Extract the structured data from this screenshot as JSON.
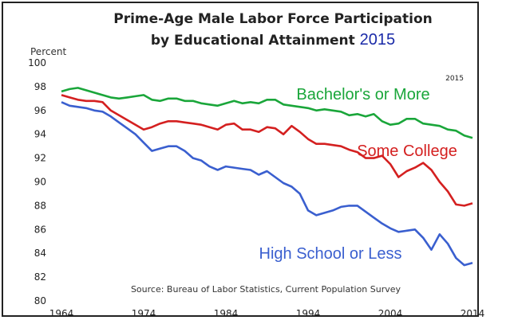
{
  "chart_data": {
    "type": "line",
    "title": "Prime-Age Male Labor Force Participation",
    "subtitle": "by Educational Attainment",
    "title_year": "2015",
    "ylabel": "Percent",
    "corner_label": "2015",
    "source": "Source: Bureau of Labor Statistics, Current Population Survey",
    "ylim": [
      80,
      100
    ],
    "xlim": [
      1964,
      2014
    ],
    "yticks": [
      80,
      82,
      84,
      86,
      88,
      90,
      92,
      94,
      96,
      98,
      100
    ],
    "xticks": [
      1964,
      1974,
      1984,
      1994,
      2004,
      2014
    ],
    "grid": false,
    "x": [
      1964,
      1965,
      1966,
      1967,
      1968,
      1969,
      1970,
      1971,
      1972,
      1973,
      1974,
      1975,
      1976,
      1977,
      1978,
      1979,
      1980,
      1981,
      1982,
      1983,
      1984,
      1985,
      1986,
      1987,
      1988,
      1989,
      1990,
      1991,
      1992,
      1993,
      1994,
      1995,
      1996,
      1997,
      1998,
      1999,
      2000,
      2001,
      2002,
      2003,
      2004,
      2005,
      2006,
      2007,
      2008,
      2009,
      2010,
      2011,
      2012,
      2013,
      2014
    ],
    "series": [
      {
        "name": "Bachelor's or More",
        "color": "#1aa63a",
        "values": [
          97.6,
          97.8,
          97.9,
          97.7,
          97.5,
          97.3,
          97.1,
          97.0,
          97.1,
          97.2,
          97.3,
          96.9,
          96.8,
          97.0,
          97.0,
          96.8,
          96.8,
          96.6,
          96.5,
          96.4,
          96.6,
          96.8,
          96.6,
          96.7,
          96.6,
          96.9,
          96.9,
          96.5,
          96.4,
          96.3,
          96.2,
          96.0,
          96.1,
          96.0,
          95.9,
          95.6,
          95.7,
          95.5,
          95.7,
          95.1,
          94.8,
          94.9,
          95.3,
          95.3,
          94.9,
          94.8,
          94.7,
          94.4,
          94.3,
          93.9,
          93.7
        ]
      },
      {
        "name": "Some College",
        "color": "#d42020",
        "values": [
          97.3,
          97.1,
          96.9,
          96.8,
          96.8,
          96.7,
          96.0,
          95.6,
          95.2,
          94.8,
          94.4,
          94.6,
          94.9,
          95.1,
          95.1,
          95.0,
          94.9,
          94.8,
          94.6,
          94.4,
          94.8,
          94.9,
          94.4,
          94.4,
          94.2,
          94.6,
          94.5,
          94.0,
          94.7,
          94.2,
          93.6,
          93.2,
          93.2,
          93.1,
          93.0,
          92.7,
          92.5,
          92.0,
          92.0,
          92.2,
          91.5,
          90.4,
          90.9,
          91.2,
          91.6,
          91.0,
          90.0,
          89.2,
          88.1,
          88.0,
          88.2
        ]
      },
      {
        "name": "High School or Less",
        "color": "#3a5fcf",
        "values": [
          96.7,
          96.4,
          96.3,
          96.2,
          96.0,
          95.9,
          95.5,
          95.0,
          94.5,
          94.0,
          93.3,
          92.6,
          92.8,
          93.0,
          93.0,
          92.6,
          92.0,
          91.8,
          91.3,
          91.0,
          91.3,
          91.2,
          91.1,
          91.0,
          90.6,
          90.9,
          90.4,
          89.9,
          89.6,
          89.0,
          87.6,
          87.2,
          87.4,
          87.6,
          87.9,
          88.0,
          88.0,
          87.5,
          87.0,
          86.5,
          86.1,
          85.8,
          85.9,
          86.0,
          85.3,
          84.3,
          85.6,
          84.8,
          83.6,
          83.0,
          83.2
        ]
      }
    ]
  }
}
